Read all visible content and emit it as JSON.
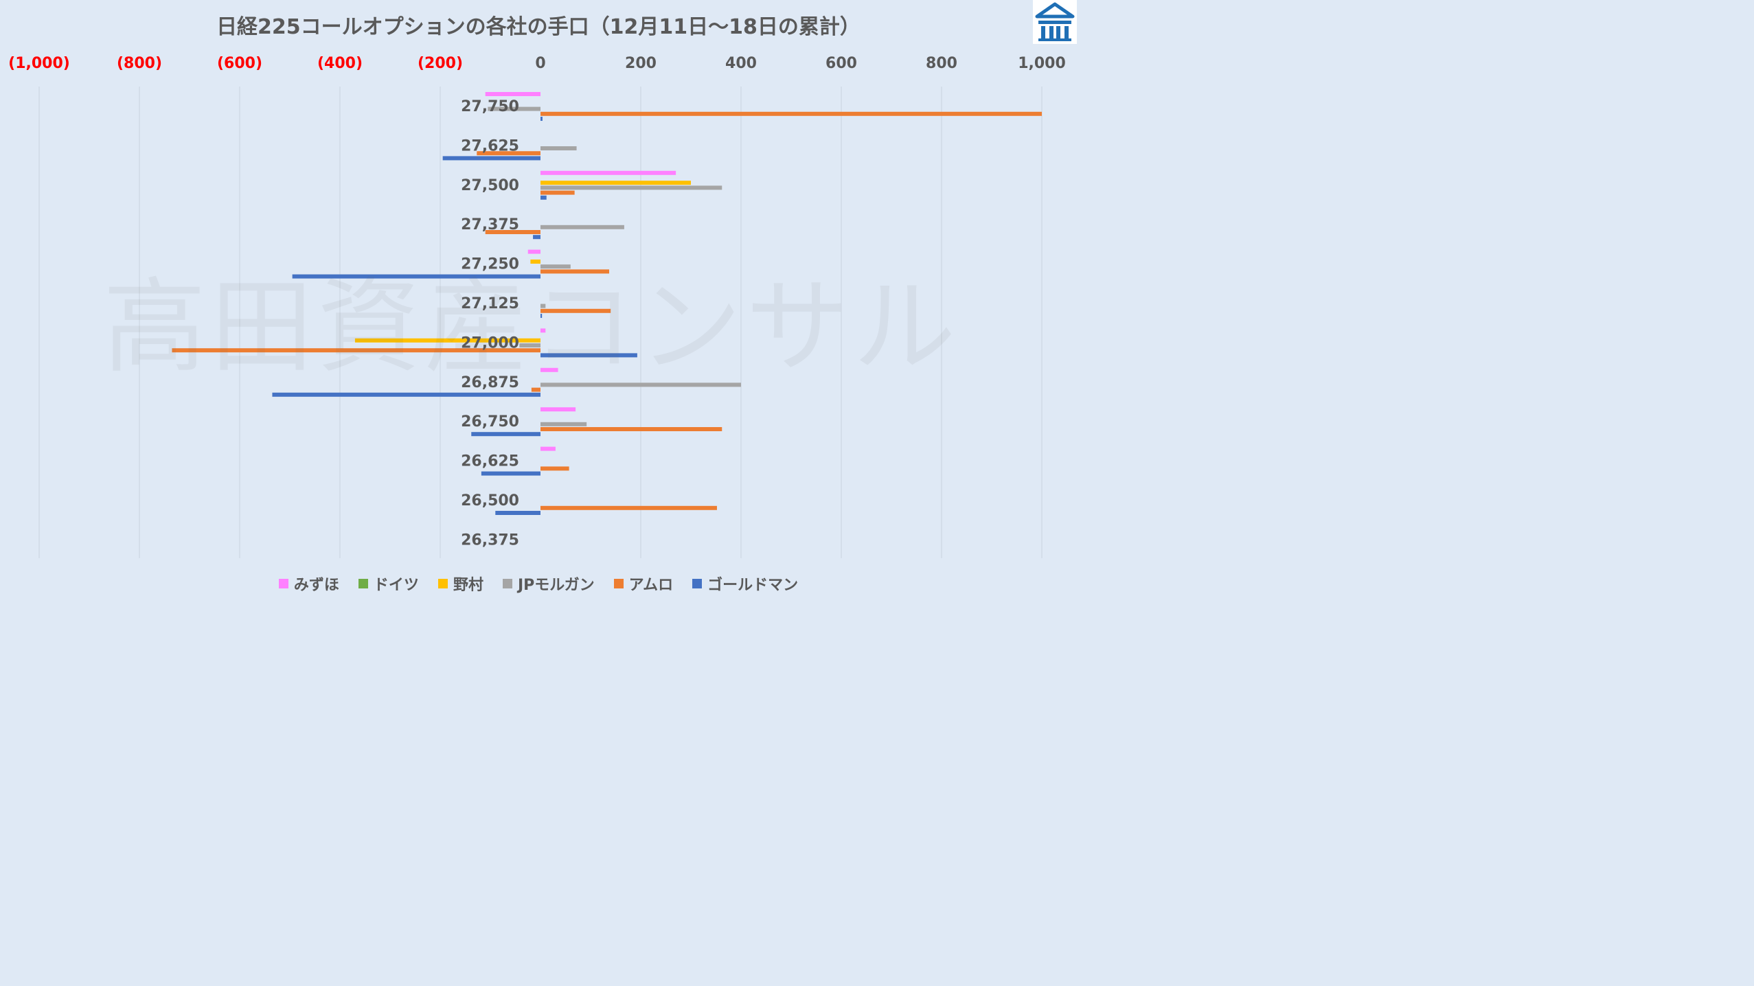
{
  "chart_data": {
    "type": "bar",
    "orientation": "horizontal",
    "title": "日経225コールオプションの各社の手口（12月11日～18日の累計）",
    "categories": [
      "27,750",
      "27,625",
      "27,500",
      "27,375",
      "27,250",
      "27,125",
      "27,000",
      "26,875",
      "26,750",
      "26,625",
      "26,500",
      "26,375"
    ],
    "xlim": [
      -1000,
      1000
    ],
    "x_ticks": [
      -1000,
      -800,
      -600,
      -400,
      -200,
      0,
      200,
      400,
      600,
      800,
      1000
    ],
    "x_tick_labels": [
      "(1,000)",
      "(800)",
      "(600)",
      "(400)",
      "(200)",
      "0",
      "200",
      "400",
      "600",
      "800",
      "1,000"
    ],
    "negative_tick_color": "#ff0000",
    "positive_tick_color": "#595959",
    "grid": true,
    "legend_position": "bottom",
    "series": [
      {
        "name": "みずほ",
        "color": "#ff80ff",
        "values": [
          -110,
          0,
          270,
          0,
          -25,
          0,
          10,
          35,
          70,
          30,
          0,
          0
        ]
      },
      {
        "name": "ドイツ",
        "color": "#70ad47",
        "values": [
          0,
          0,
          0,
          0,
          0,
          0,
          0,
          0,
          0,
          0,
          0,
          0
        ]
      },
      {
        "name": "野村",
        "color": "#ffc000",
        "values": [
          0,
          0,
          300,
          0,
          -20,
          0,
          -370,
          0,
          0,
          0,
          0,
          0
        ]
      },
      {
        "name": "JPモルガン",
        "color": "#a5a5a5",
        "values": [
          -105,
          72,
          362,
          167,
          60,
          10,
          -42,
          400,
          92,
          0,
          0,
          0
        ]
      },
      {
        "name": "アムロ",
        "color": "#ed7d31",
        "values": [
          1000,
          -127,
          68,
          -110,
          137,
          140,
          -735,
          -18,
          362,
          57,
          352,
          0
        ]
      },
      {
        "name": "ゴールドマン",
        "color": "#4472c4",
        "values": [
          4,
          -195,
          12,
          -15,
          -495,
          3,
          193,
          -535,
          -138,
          -118,
          -90,
          0
        ]
      }
    ]
  },
  "watermark": "高田資産コンサル",
  "logo_icon": "building-columns-icon",
  "logo_color": "#1f6fb5"
}
